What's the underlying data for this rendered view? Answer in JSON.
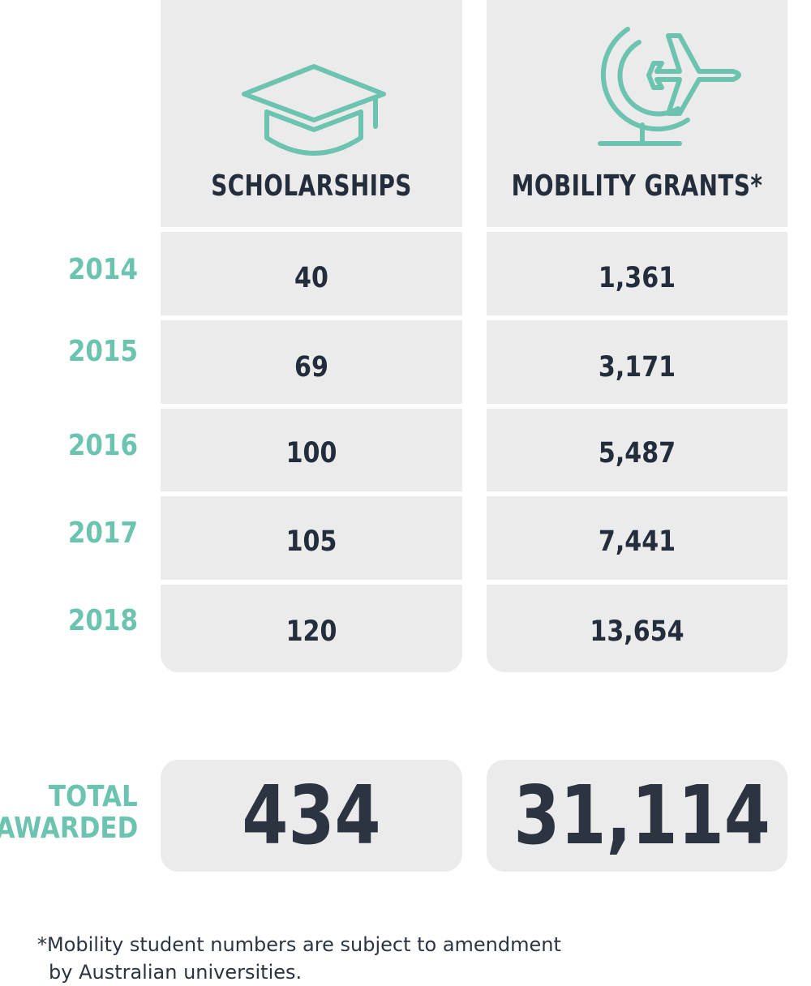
{
  "columns": {
    "scholarships": {
      "title": "SCHOLARSHIPS",
      "icon": "graduation-cap-icon"
    },
    "mobility": {
      "title": "MOBILITY GRANTS*",
      "icon": "globe-airplane-icon"
    }
  },
  "rows": [
    {
      "year": "2014",
      "scholarships": "40",
      "mobility": "1,361"
    },
    {
      "year": "2015",
      "scholarships": "69",
      "mobility": "3,171"
    },
    {
      "year": "2016",
      "scholarships": "100",
      "mobility": "5,487"
    },
    {
      "year": "2017",
      "scholarships": "105",
      "mobility": "7,441"
    },
    {
      "year": "2018",
      "scholarships": "120",
      "mobility": "13,654"
    }
  ],
  "totals": {
    "label_line1": "TOTAL",
    "label_line2": "AWARDED",
    "scholarships": "434",
    "mobility": "31,114"
  },
  "footnote": {
    "line1": "*Mobility student numbers are subject to amendment",
    "line2": "by Australian universities."
  },
  "colors": {
    "accent": "#6cc4b0",
    "text": "#232d3b",
    "panel": "#ebebeb"
  }
}
